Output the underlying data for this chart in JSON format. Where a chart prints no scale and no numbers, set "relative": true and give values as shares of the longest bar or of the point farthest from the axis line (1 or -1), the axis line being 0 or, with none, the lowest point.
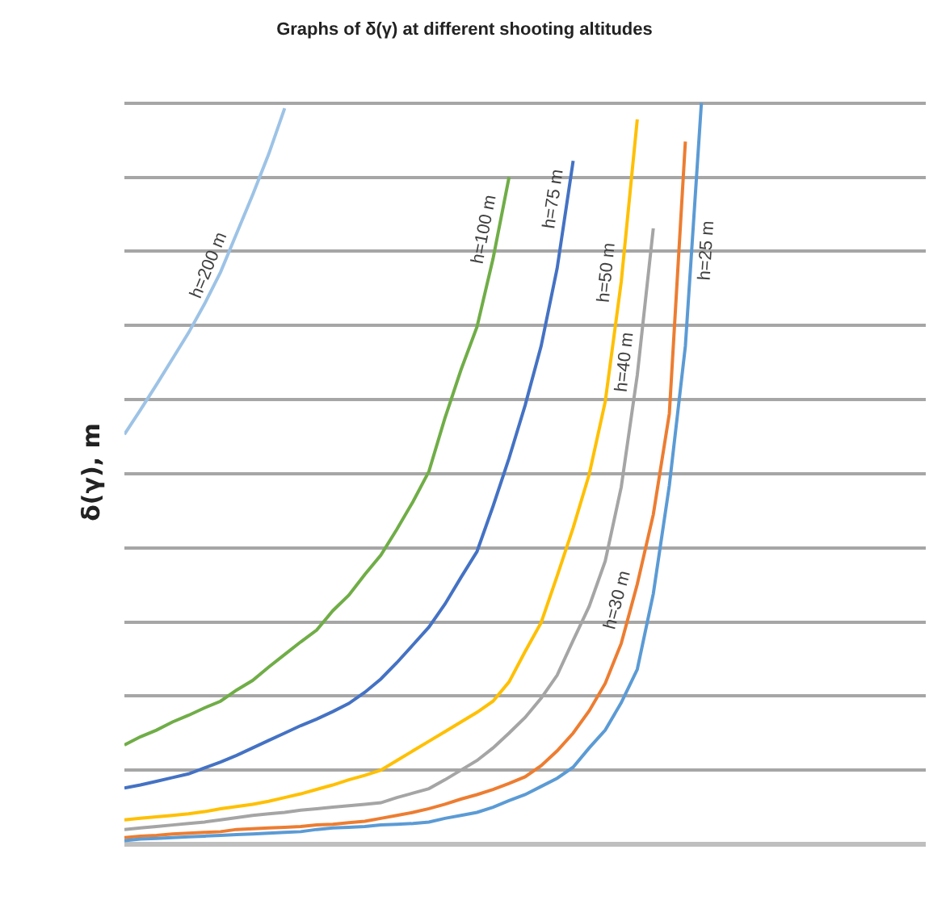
{
  "chart_data": {
    "type": "line",
    "title": "Graphs of δ(γ) at different shooting altitudes",
    "ylabel": "δ(γ), m",
    "relative": true,
    "grid": "y",
    "legend": false,
    "marker": "none",
    "line_style": "solid",
    "categories": [
      null,
      null,
      null,
      null,
      null,
      null,
      null,
      null,
      null,
      null,
      null,
      null,
      null,
      null,
      null,
      null,
      null,
      null,
      null,
      null,
      null,
      null,
      null,
      null,
      null,
      null,
      null,
      null,
      null,
      null,
      null,
      null,
      null,
      null,
      null,
      null,
      null,
      null,
      null,
      null,
      null,
      null,
      null,
      null,
      null,
      null,
      null,
      null,
      null,
      null,
      null
    ],
    "series": [
      {
        "name": "h=200 m",
        "color": "#9dc3e6",
        "values": [
          0.553,
          0.586,
          0.62,
          0.655,
          0.69,
          0.729,
          0.772,
          0.824,
          0.876,
          0.931,
          0.993,
          null,
          null,
          null,
          null,
          null,
          null,
          null,
          null,
          null,
          null,
          null,
          null,
          null,
          null,
          null,
          null,
          null,
          null,
          null,
          null,
          null,
          null,
          null,
          null,
          null,
          null,
          null,
          null,
          null,
          null,
          null,
          null,
          null,
          null,
          null,
          null,
          null,
          null,
          null,
          null
        ]
      },
      {
        "name": "h=100 m",
        "color": "#70ad47",
        "values": [
          0.134,
          0.145,
          0.154,
          0.165,
          0.174,
          0.184,
          0.193,
          0.208,
          0.221,
          0.239,
          0.256,
          0.273,
          0.289,
          0.315,
          0.336,
          0.364,
          0.39,
          0.425,
          0.462,
          0.503,
          0.575,
          0.64,
          0.698,
          0.79,
          0.9,
          null,
          null,
          null,
          null,
          null,
          null,
          null,
          null,
          null,
          null,
          null,
          null,
          null,
          null,
          null,
          null,
          null,
          null,
          null,
          null,
          null,
          null,
          null,
          null,
          null,
          null
        ]
      },
      {
        "name": "h=75 m",
        "color": "#4472c4",
        "values": [
          0.076,
          0.08,
          0.085,
          0.09,
          0.095,
          0.103,
          0.111,
          0.12,
          0.13,
          0.14,
          0.15,
          0.16,
          0.169,
          0.179,
          0.19,
          0.205,
          0.223,
          0.245,
          0.269,
          0.293,
          0.324,
          0.36,
          0.395,
          0.456,
          0.521,
          0.592,
          0.672,
          0.777,
          0.922,
          null,
          null,
          null,
          null,
          null,
          null,
          null,
          null,
          null,
          null,
          null,
          null,
          null,
          null,
          null,
          null,
          null,
          null,
          null,
          null,
          null,
          null
        ]
      },
      {
        "name": "h=50 m",
        "color": "#ffc000",
        "values": [
          0.033,
          0.035,
          0.037,
          0.039,
          0.041,
          0.044,
          0.048,
          0.051,
          0.054,
          0.058,
          0.063,
          0.068,
          0.074,
          0.08,
          0.087,
          0.093,
          0.1,
          0.113,
          0.126,
          0.139,
          0.152,
          0.165,
          0.178,
          0.193,
          0.219,
          0.26,
          0.299,
          0.362,
          0.427,
          0.499,
          0.597,
          0.759,
          0.978,
          null,
          null,
          null,
          null,
          null,
          null,
          null,
          null,
          null,
          null,
          null,
          null,
          null,
          null,
          null,
          null,
          null,
          null
        ]
      },
      {
        "name": "h=40 m",
        "color": "#a5a5a5",
        "values": [
          0.02,
          0.022,
          0.024,
          0.026,
          0.028,
          0.03,
          0.033,
          0.036,
          0.039,
          0.041,
          0.043,
          0.046,
          0.048,
          0.05,
          0.052,
          0.054,
          0.056,
          0.063,
          0.069,
          0.075,
          0.087,
          0.1,
          0.113,
          0.13,
          0.15,
          0.171,
          0.197,
          0.228,
          0.275,
          0.321,
          0.382,
          0.482,
          0.633,
          0.831,
          null,
          null,
          null,
          null,
          null,
          null,
          null,
          null,
          null,
          null,
          null,
          null,
          null,
          null,
          null,
          null,
          null
        ]
      },
      {
        "name": "h=30 m",
        "color": "#ed7d31",
        "values": [
          0.009,
          0.011,
          0.012,
          0.014,
          0.015,
          0.016,
          0.017,
          0.02,
          0.021,
          0.022,
          0.023,
          0.024,
          0.026,
          0.027,
          0.029,
          0.031,
          0.035,
          0.039,
          0.043,
          0.048,
          0.054,
          0.061,
          0.067,
          0.074,
          0.082,
          0.091,
          0.106,
          0.126,
          0.15,
          0.18,
          0.217,
          0.271,
          0.351,
          0.445,
          0.581,
          0.948,
          null,
          null,
          null,
          null,
          null,
          null,
          null,
          null,
          null,
          null,
          null,
          null,
          null,
          null,
          null
        ]
      },
      {
        "name": "h=25 m",
        "color": "#5b9bd5",
        "values": [
          0.005,
          0.007,
          0.008,
          0.009,
          0.01,
          0.011,
          0.012,
          0.013,
          0.014,
          0.015,
          0.016,
          0.017,
          0.02,
          0.022,
          0.023,
          0.024,
          0.026,
          0.027,
          0.028,
          0.03,
          0.035,
          0.039,
          0.043,
          0.05,
          0.059,
          0.067,
          0.078,
          0.089,
          0.104,
          0.13,
          0.154,
          0.191,
          0.236,
          0.338,
          0.484,
          0.672,
          1,
          null,
          null,
          null,
          null,
          null,
          null,
          null,
          null,
          null,
          null,
          null,
          null,
          null,
          null
        ]
      }
    ]
  }
}
